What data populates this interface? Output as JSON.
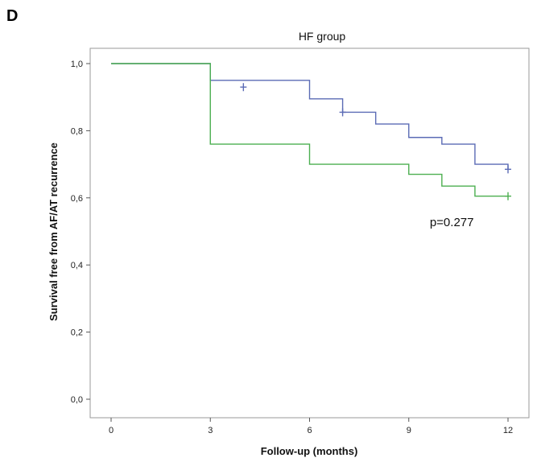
{
  "chart_data": {
    "type": "line",
    "panel_label": "D",
    "title": "HF group",
    "xlabel": "Follow-up (months)",
    "ylabel": "Survival free from AF/AT recurrence",
    "xlim": [
      0,
      12
    ],
    "ylim": [
      0,
      1
    ],
    "x_ticks": [
      0,
      3,
      6,
      9,
      12
    ],
    "x_tick_labels": [
      "0",
      "3",
      "6",
      "9",
      "12"
    ],
    "y_ticks": [
      0,
      0.2,
      0.4,
      0.6,
      0.8,
      1.0
    ],
    "y_tick_labels": [
      "0,0",
      "0,2",
      "0,4",
      "0,6",
      "0,8",
      "1,0"
    ],
    "grid": false,
    "series": [
      {
        "color": "#5b6bb5",
        "step": [
          {
            "x": 0,
            "y": 1.0
          },
          {
            "x": 3,
            "y": 0.95
          },
          {
            "x": 6,
            "y": 0.895
          },
          {
            "x": 7,
            "y": 0.855
          },
          {
            "x": 8,
            "y": 0.82
          },
          {
            "x": 9,
            "y": 0.78
          },
          {
            "x": 10,
            "y": 0.76
          },
          {
            "x": 11,
            "y": 0.7
          },
          {
            "x": 12,
            "y": 0.685
          }
        ],
        "censored": [
          {
            "x": 4,
            "y": 0.93
          },
          {
            "x": 7,
            "y": 0.855
          },
          {
            "x": 12,
            "y": 0.685
          }
        ]
      },
      {
        "color": "#4caf50",
        "step": [
          {
            "x": 0,
            "y": 1.0
          },
          {
            "x": 3,
            "y": 0.76
          },
          {
            "x": 6,
            "y": 0.7
          },
          {
            "x": 9,
            "y": 0.67
          },
          {
            "x": 10,
            "y": 0.635
          },
          {
            "x": 11,
            "y": 0.605
          },
          {
            "x": 12,
            "y": 0.605
          }
        ],
        "censored": [
          {
            "x": 12,
            "y": 0.605
          }
        ]
      }
    ],
    "annotation": {
      "text": "p=0.277",
      "x": 10.3,
      "y": 0.515
    }
  }
}
